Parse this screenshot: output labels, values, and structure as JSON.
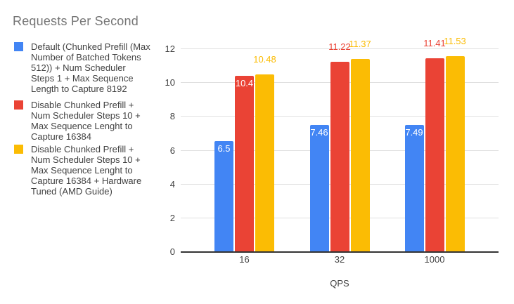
{
  "title": "Requests Per Second",
  "colors": {
    "background": "#FFFFFF",
    "title_text": "#757575",
    "legend_text": "#424242",
    "axis_text": "#424242",
    "gridline": "#E0E0E0",
    "baseline": "#333333",
    "inside_label_text": "#FFFFFF",
    "series_blue": "#4285F4",
    "series_red": "#EA4335",
    "series_yellow": "#FBBC04"
  },
  "legend": {
    "items": [
      {
        "label": "Default (Chunked Prefill (Max\nNumber of Batched Tokens\n512)) + Num Scheduler\nSteps 1 + Max Sequence\nLength to Capture 8192",
        "color": "#4285F4",
        "swatch": "blue-square"
      },
      {
        "label": "Disable Chunked Prefill +\nNum Scheduler Steps 10 +\nMax Sequence Lenght to\nCapture 16384",
        "color": "#EA4335",
        "swatch": "red-square"
      },
      {
        "label": "Disable Chunked Prefill +\nNum Scheduler Steps 10 +\nMax Sequence Lenght to\nCapture 16384 + Hardware\nTuned (AMD Guide)",
        "color": "#FBBC04",
        "swatch": "yellow-square"
      }
    ]
  },
  "chart_data": {
    "type": "bar",
    "title": "Requests Per Second",
    "xlabel": "QPS",
    "ylabel": "",
    "categories": [
      "16",
      "32",
      "1000"
    ],
    "ylim": [
      0,
      12
    ],
    "y_ticks": [
      0,
      2,
      4,
      6,
      8,
      10,
      12
    ],
    "grid": true,
    "legend_position": "left",
    "series": [
      {
        "name": "Default (Chunked Prefill (Max Number of Batched Tokens 512)) + Num Scheduler Steps 1 + Max Sequence Length to Capture 8192",
        "color": "#4285F4",
        "values": [
          6.5,
          7.46,
          7.49
        ],
        "data_labels": [
          "6.5",
          "7.46",
          "7.49"
        ],
        "label_positions": [
          "inside",
          "inside",
          "inside"
        ]
      },
      {
        "name": "Disable Chunked Prefill + Num Scheduler Steps 10 + Max Sequence Lenght to Capture 16384",
        "color": "#EA4335",
        "values": [
          10.4,
          11.22,
          11.41
        ],
        "data_labels": [
          "10.4",
          "11.22",
          "11.41"
        ],
        "label_positions": [
          "inside",
          "above",
          "above"
        ]
      },
      {
        "name": "Disable Chunked Prefill + Num Scheduler Steps 10 + Max Sequence Lenght to Capture 16384 + Hardware Tuned (AMD Guide)",
        "color": "#FBBC04",
        "values": [
          10.48,
          11.37,
          11.53
        ],
        "data_labels": [
          "10.48",
          "11.37",
          "11.53"
        ],
        "label_positions": [
          "above",
          "above",
          "above"
        ]
      }
    ]
  }
}
